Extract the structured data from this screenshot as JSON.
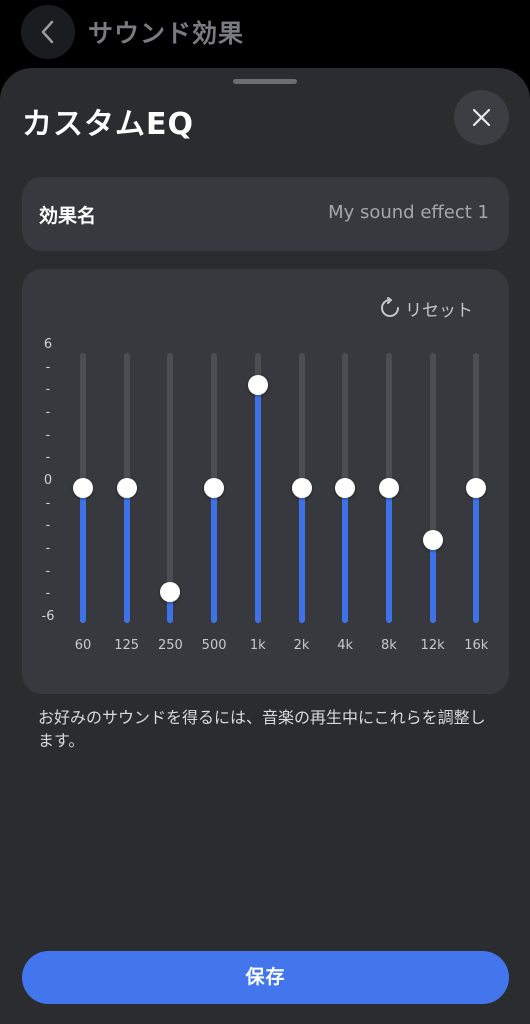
{
  "topbar": {
    "title": "サウンド効果",
    "back_icon": "chevron-left-icon"
  },
  "sheet": {
    "title": "カスタムEQ",
    "close_icon": "close-icon"
  },
  "name_field": {
    "label": "効果名",
    "value": "My sound effect 1"
  },
  "eq": {
    "reset_label": "リセット",
    "reset_icon": "refresh-icon",
    "scale_labels": [
      "6",
      "-",
      "-",
      "-",
      "-",
      "-",
      "0",
      "-",
      "-",
      "-",
      "-",
      "-",
      "-6"
    ],
    "range": [
      -6,
      6
    ],
    "bands": [
      {
        "freq": "60",
        "gain": 0
      },
      {
        "freq": "125",
        "gain": 0
      },
      {
        "freq": "250",
        "gain": -4.6
      },
      {
        "freq": "500",
        "gain": 0
      },
      {
        "freq": "1k",
        "gain": 4.6
      },
      {
        "freq": "2k",
        "gain": 0
      },
      {
        "freq": "4k",
        "gain": 0
      },
      {
        "freq": "8k",
        "gain": 0
      },
      {
        "freq": "12k",
        "gain": -2.3
      },
      {
        "freq": "16k",
        "gain": 0
      }
    ]
  },
  "hint": "お好みのサウンドを得るには、音楽の再生中にこれらを調整します。",
  "save_label": "保存",
  "colors": {
    "accent": "#4376ec",
    "sheet_bg": "#2b2c30",
    "card_bg": "#38393e"
  }
}
